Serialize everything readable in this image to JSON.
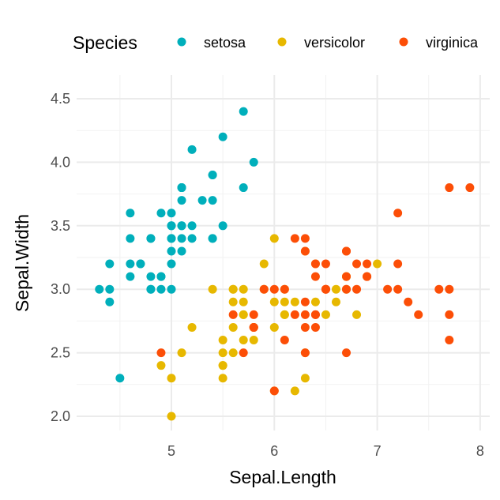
{
  "chart_data": {
    "type": "scatter",
    "xlabel": "Sepal.Length",
    "ylabel": "Sepal.Width",
    "xlim": [
      4.2,
      8.05
    ],
    "ylim": [
      1.9,
      4.6
    ],
    "xticks": [
      "5",
      "6",
      "7",
      "8"
    ],
    "yticks": [
      "2.0",
      "2.5",
      "3.0",
      "3.5",
      "4.0",
      "4.5"
    ],
    "grid": true,
    "legend": {
      "title": "Species",
      "placement": "top"
    },
    "series": [
      {
        "name": "setosa",
        "color": "#00AFBB",
        "x": [
          5.1,
          4.9,
          4.7,
          4.6,
          5.0,
          5.4,
          4.6,
          5.0,
          4.4,
          4.9,
          5.4,
          4.8,
          4.8,
          4.3,
          5.8,
          5.7,
          5.4,
          5.1,
          5.7,
          5.1,
          5.4,
          5.1,
          4.6,
          5.1,
          4.8,
          5.0,
          5.0,
          5.2,
          5.2,
          4.7,
          4.8,
          5.4,
          5.2,
          5.5,
          4.9,
          5.0,
          5.5,
          4.9,
          4.4,
          5.1,
          5.0,
          4.5,
          4.4,
          5.0,
          5.1,
          4.8,
          5.1,
          4.6,
          5.3,
          5.0
        ],
        "y": [
          3.5,
          3.0,
          3.2,
          3.1,
          3.6,
          3.9,
          3.4,
          3.4,
          2.9,
          3.1,
          3.7,
          3.4,
          3.0,
          3.0,
          4.0,
          4.4,
          3.9,
          3.5,
          3.8,
          3.8,
          3.4,
          3.7,
          3.6,
          3.3,
          3.4,
          3.0,
          3.4,
          3.5,
          3.4,
          3.2,
          3.1,
          3.4,
          4.1,
          4.2,
          3.1,
          3.2,
          3.5,
          3.6,
          3.0,
          3.4,
          3.5,
          2.3,
          3.2,
          3.5,
          3.8,
          3.0,
          3.8,
          3.2,
          3.7,
          3.3
        ]
      },
      {
        "name": "versicolor",
        "color": "#E7B800",
        "x": [
          7.0,
          6.4,
          6.9,
          5.5,
          6.5,
          5.7,
          6.3,
          4.9,
          6.6,
          5.2,
          5.0,
          5.9,
          6.0,
          6.1,
          5.6,
          6.7,
          5.6,
          5.8,
          6.2,
          5.6,
          5.9,
          6.1,
          6.3,
          6.1,
          6.4,
          6.6,
          6.8,
          6.7,
          6.0,
          5.7,
          5.5,
          5.5,
          5.8,
          6.0,
          5.4,
          6.0,
          6.7,
          6.3,
          5.6,
          5.5,
          5.5,
          6.1,
          5.8,
          5.0,
          5.6,
          5.7,
          5.7,
          6.2,
          5.1,
          5.7
        ],
        "y": [
          3.2,
          3.2,
          3.1,
          2.3,
          2.8,
          2.8,
          3.3,
          2.4,
          2.9,
          2.7,
          2.0,
          3.0,
          2.2,
          2.9,
          2.9,
          3.1,
          3.0,
          2.7,
          2.2,
          2.5,
          3.2,
          2.8,
          2.5,
          2.8,
          2.9,
          3.0,
          2.8,
          3.0,
          2.9,
          2.6,
          2.4,
          2.4,
          2.7,
          2.7,
          3.0,
          3.4,
          3.1,
          2.3,
          3.0,
          2.5,
          2.6,
          3.0,
          2.6,
          2.3,
          2.7,
          3.0,
          2.9,
          2.9,
          2.5,
          2.8
        ]
      },
      {
        "name": "virginica",
        "color": "#FC4E07",
        "x": [
          6.3,
          5.8,
          7.1,
          6.3,
          6.5,
          7.6,
          4.9,
          7.3,
          6.7,
          7.2,
          6.5,
          6.4,
          6.8,
          5.7,
          5.8,
          6.4,
          6.5,
          7.7,
          7.7,
          6.0,
          6.9,
          5.6,
          7.7,
          6.3,
          6.7,
          7.2,
          6.2,
          6.1,
          6.4,
          7.2,
          7.4,
          7.9,
          6.4,
          6.3,
          6.1,
          7.7,
          6.3,
          6.4,
          6.0,
          6.9,
          6.7,
          6.9,
          5.8,
          6.8,
          6.7,
          6.7,
          6.3,
          6.5,
          6.2,
          5.9
        ],
        "y": [
          3.3,
          2.7,
          3.0,
          2.9,
          3.0,
          3.0,
          2.5,
          2.9,
          2.5,
          3.6,
          3.2,
          2.7,
          3.0,
          2.5,
          2.8,
          3.2,
          3.0,
          3.8,
          2.6,
          2.2,
          3.2,
          2.8,
          2.8,
          2.7,
          3.3,
          3.2,
          2.8,
          3.0,
          2.8,
          3.0,
          2.8,
          3.8,
          2.8,
          2.8,
          2.6,
          3.0,
          3.4,
          3.1,
          3.0,
          3.1,
          3.1,
          3.1,
          2.7,
          3.2,
          3.3,
          3.0,
          2.5,
          3.0,
          3.4,
          3.0
        ]
      }
    ]
  }
}
